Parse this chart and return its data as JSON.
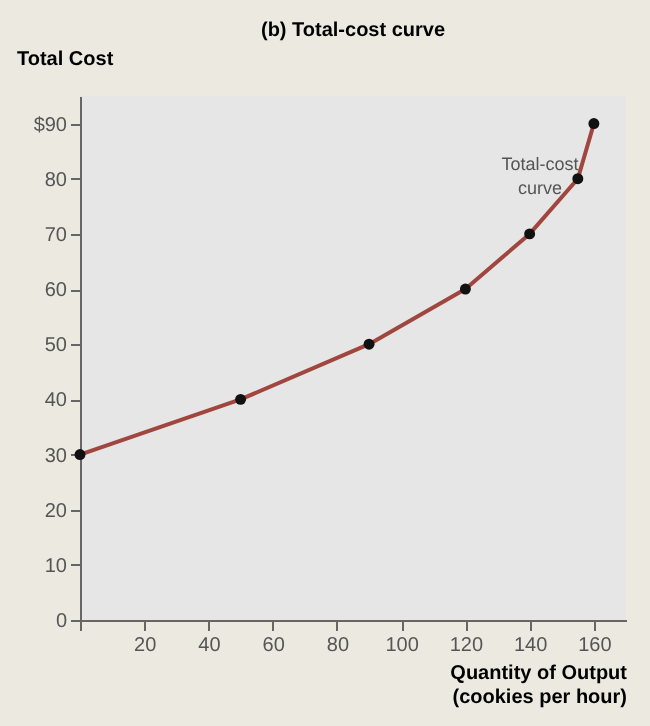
{
  "chart_data": {
    "type": "line",
    "title": "(b) Total-cost curve",
    "xlabel": "Quantity of Output (cookies per hour)",
    "ylabel": "Total Cost",
    "x": [
      0,
      50,
      90,
      120,
      140,
      155,
      160
    ],
    "series": [
      {
        "color": "#a0463f",
        "values": [
          30,
          40,
          50,
          60,
          70,
          80,
          90
        ]
      }
    ],
    "xlim": [
      0,
      170
    ],
    "xticks": [
      {
        "value": 0,
        "label": null
      },
      20,
      40,
      60,
      80,
      100,
      120,
      140,
      160
    ],
    "ylim": [
      0,
      95
    ],
    "yticks": [
      0,
      10,
      20,
      30,
      40,
      50,
      60,
      70,
      80,
      {
        "value": 90,
        "label": "$90"
      }
    ],
    "marker": "circle",
    "grid": false,
    "annotations": [
      "Total-cost curve"
    ]
  }
}
